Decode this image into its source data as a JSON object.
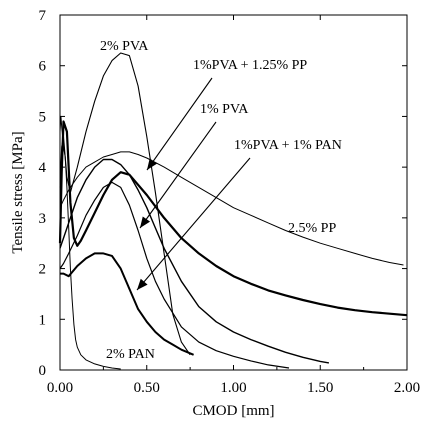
{
  "chart_data": {
    "type": "line",
    "xlabel": "CMOD [mm]",
    "ylabel": "Tensile stress [MPa]",
    "xlim": [
      0,
      2
    ],
    "ylim": [
      0,
      7
    ],
    "xticks": [
      "0.00",
      "0.50",
      "1.00",
      "1.50",
      "2.00"
    ],
    "yticks": [
      "0",
      "1",
      "2",
      "3",
      "4",
      "5",
      "6",
      "7"
    ],
    "grid": false,
    "legend": "none",
    "series": [
      {
        "name": "2% PVA",
        "x": [
          0,
          0.01,
          0.02,
          0.04,
          0.06,
          0.1,
          0.15,
          0.2,
          0.25,
          0.3,
          0.35,
          0.4,
          0.45,
          0.5,
          0.55,
          0.6,
          0.65,
          0.7,
          0.75
        ],
        "y": [
          3.6,
          4.4,
          4.6,
          3.8,
          3.5,
          4.0,
          4.7,
          5.3,
          5.8,
          6.1,
          6.25,
          6.2,
          5.6,
          4.6,
          3.5,
          2.3,
          1.1,
          0.55,
          0.3
        ]
      },
      {
        "name": "1%PVA + 1.25% PP",
        "x": [
          0,
          0.02,
          0.05,
          0.1,
          0.15,
          0.2,
          0.25,
          0.3,
          0.35,
          0.4,
          0.45,
          0.5,
          0.55,
          0.6,
          0.7,
          0.8,
          0.9,
          1.0,
          1.1,
          1.2,
          1.3,
          1.4,
          1.5,
          1.55
        ],
        "y": [
          2.4,
          2.6,
          2.9,
          3.4,
          3.75,
          4.0,
          4.15,
          4.15,
          4.05,
          3.85,
          3.55,
          3.2,
          2.8,
          2.4,
          1.75,
          1.25,
          0.95,
          0.75,
          0.6,
          0.47,
          0.35,
          0.25,
          0.17,
          0.14
        ]
      },
      {
        "name": "1% PVA",
        "x": [
          0,
          0.02,
          0.05,
          0.1,
          0.15,
          0.2,
          0.25,
          0.3,
          0.35,
          0.4,
          0.45,
          0.5,
          0.55,
          0.6,
          0.7,
          0.8,
          0.9,
          1.0,
          1.1,
          1.2,
          1.3,
          1.32
        ],
        "y": [
          2.0,
          2.1,
          2.3,
          2.65,
          3.05,
          3.35,
          3.6,
          3.7,
          3.6,
          3.25,
          2.75,
          2.2,
          1.75,
          1.4,
          0.85,
          0.55,
          0.38,
          0.27,
          0.18,
          0.1,
          0.05,
          0.04
        ]
      },
      {
        "name": "2.5% PP",
        "x": [
          0,
          0.02,
          0.05,
          0.1,
          0.15,
          0.2,
          0.25,
          0.3,
          0.35,
          0.4,
          0.45,
          0.5,
          0.6,
          0.7,
          0.8,
          0.9,
          1.0,
          1.1,
          1.2,
          1.3,
          1.4,
          1.5,
          1.6,
          1.7,
          1.8,
          1.9,
          1.98
        ],
        "y": [
          3.2,
          3.35,
          3.55,
          3.8,
          4.0,
          4.1,
          4.2,
          4.25,
          4.3,
          4.3,
          4.25,
          4.18,
          4.0,
          3.8,
          3.6,
          3.4,
          3.2,
          3.05,
          2.9,
          2.75,
          2.62,
          2.5,
          2.4,
          2.3,
          2.2,
          2.12,
          2.07
        ]
      },
      {
        "name": "1%PVA + 1% PAN",
        "x": [
          0,
          0.01,
          0.02,
          0.04,
          0.06,
          0.08,
          0.1,
          0.12,
          0.15,
          0.2,
          0.25,
          0.3,
          0.35,
          0.4,
          0.5,
          0.6,
          0.7,
          0.8,
          0.9,
          1.0,
          1.1,
          1.2,
          1.3,
          1.4,
          1.5,
          1.6,
          1.7,
          1.8,
          1.9,
          2.0
        ],
        "y": [
          2.5,
          3.9,
          4.9,
          4.7,
          3.3,
          2.6,
          2.45,
          2.55,
          2.75,
          3.1,
          3.45,
          3.75,
          3.9,
          3.85,
          3.45,
          3.0,
          2.6,
          2.3,
          2.05,
          1.85,
          1.7,
          1.57,
          1.47,
          1.38,
          1.3,
          1.23,
          1.18,
          1.14,
          1.11,
          1.08
        ]
      },
      {
        "name": "1%PVA + 1% PAN (lower branch)",
        "x": [
          0,
          0.02,
          0.05,
          0.1,
          0.15,
          0.2,
          0.25,
          0.3,
          0.35,
          0.4,
          0.45,
          0.5,
          0.55,
          0.6,
          0.65,
          0.7,
          0.77
        ],
        "y": [
          1.9,
          1.9,
          1.85,
          2.05,
          2.2,
          2.3,
          2.3,
          2.25,
          2.0,
          1.6,
          1.2,
          0.95,
          0.75,
          0.6,
          0.5,
          0.4,
          0.3
        ]
      },
      {
        "name": "2% PAN",
        "x": [
          0,
          0.005,
          0.01,
          0.02,
          0.03,
          0.04,
          0.05,
          0.06,
          0.07,
          0.08,
          0.09,
          0.1,
          0.12,
          0.15,
          0.2,
          0.25,
          0.3,
          0.35
        ],
        "y": [
          4.7,
          5.0,
          4.8,
          4.4,
          4.2,
          3.6,
          2.8,
          2.0,
          1.4,
          0.9,
          0.6,
          0.45,
          0.3,
          0.2,
          0.12,
          0.07,
          0.04,
          0.02
        ]
      }
    ],
    "labels": [
      "2% PVA",
      "1%PVA + 1.25% PP",
      "1% PVA",
      "1%PVA + 1% PAN",
      "2.5% PP",
      "2% PAN"
    ]
  }
}
